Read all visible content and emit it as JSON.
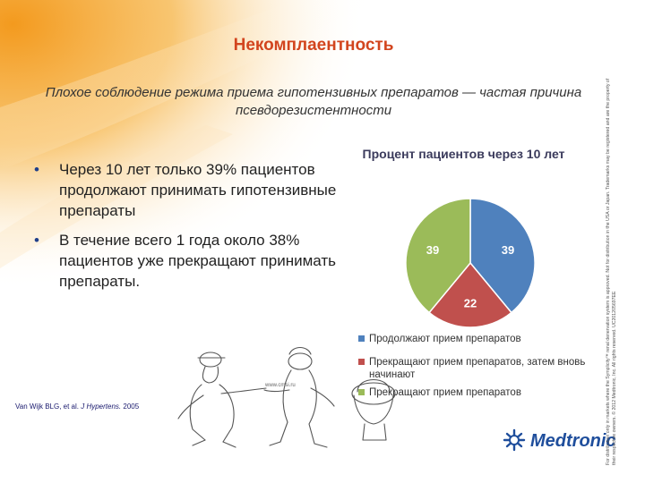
{
  "title": "Некомплаентность",
  "subtitle": "Плохое соблюдение режима приема гипотензивных препаратов — частая причина псевдорезистентности",
  "bullets": [
    "Через 10 лет только 39% пациентов продолжают принимать гипотензивные препараты",
    "В течение всего 1 года около 38% пациентов уже прекращают принимать препараты."
  ],
  "citation": {
    "authors": "Van Wijk BLG, et al.",
    "journal": "J Hypertens.",
    "year": "2005"
  },
  "cartoon_caption": "www.cmsi.ru",
  "brand": "Medtronic",
  "disclaimer": "For distribution only in markets where the Symplicity™ renal denervation system is approved. Not for distribution in the USA or Japan. Trademarks may be registered and are the property of their respective owners. © 2012 Medtronic, Inc. All rights reserved. UC201205697EE",
  "colors": {
    "title": "#d2451e",
    "accent_orange": "#f39a1e",
    "blue": "#4f81bd",
    "red": "#c0504d",
    "green": "#9bbb59"
  },
  "chart_data": {
    "type": "pie",
    "title": "Процент пациентов через 10 лет",
    "slices": [
      {
        "label": "Продолжают прием препаратов",
        "value": 39,
        "color": "#4f81bd"
      },
      {
        "label": "Прекращают прием препаратов, затем вновь начинают",
        "value": 22,
        "color": "#c0504d"
      },
      {
        "label": "Прекращают прием препаратов",
        "value": 39,
        "color": "#9bbb59"
      }
    ],
    "legend_position": "bottom",
    "data_labels": true
  }
}
